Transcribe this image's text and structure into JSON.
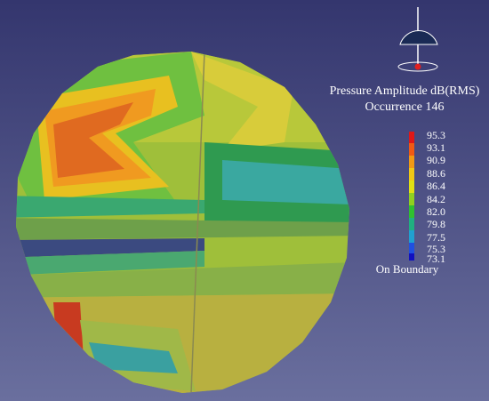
{
  "legend": {
    "title": "Pressure Amplitude dB(RMS)",
    "subtitle": "Occurrence 146",
    "levels": [
      "95.3",
      "93.1",
      "90.9",
      "88.6",
      "86.4",
      "84.2",
      "82.0",
      "79.8",
      "77.5",
      "75.3",
      "73.1"
    ],
    "footer": "On Boundary"
  }
}
